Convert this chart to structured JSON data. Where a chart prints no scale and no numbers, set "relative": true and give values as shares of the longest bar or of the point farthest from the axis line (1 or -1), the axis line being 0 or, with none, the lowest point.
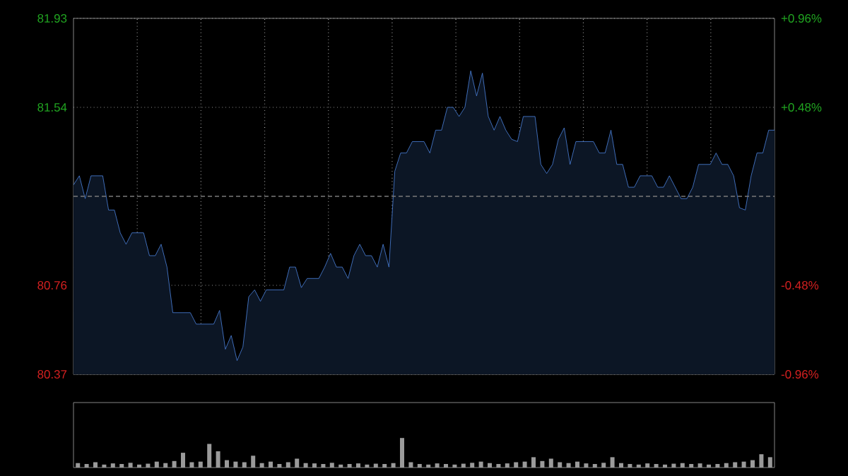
{
  "chart_data": [
    {
      "type": "area",
      "categories": [
        null,
        null,
        null,
        null,
        null,
        null,
        null,
        null,
        null,
        null,
        null,
        null,
        null,
        null,
        null,
        null,
        null,
        null,
        null,
        null,
        null,
        null,
        null,
        null,
        null,
        null,
        null,
        null,
        null,
        null,
        null,
        null,
        null,
        null,
        null,
        null,
        null,
        null,
        null,
        null,
        null,
        null,
        null,
        null,
        null,
        null,
        null,
        null,
        null,
        null,
        null,
        null,
        null,
        null,
        null,
        null,
        null,
        null,
        null,
        null,
        null,
        null,
        null,
        null,
        null,
        null,
        null,
        null,
        null,
        null,
        null,
        null,
        null,
        null,
        null,
        null,
        null,
        null,
        null,
        null,
        null,
        null,
        null,
        null,
        null,
        null,
        null,
        null,
        null,
        null,
        null,
        null,
        null,
        null,
        null,
        null,
        null,
        null,
        null,
        null,
        null,
        null,
        null,
        null,
        null,
        null,
        null,
        null,
        null,
        null,
        null,
        null,
        null,
        null,
        null,
        null,
        null,
        null,
        null,
        null,
        null
      ],
      "series": [
        {
          "color": "#4d84e0",
          "values": [
            81.2,
            81.24,
            81.14,
            81.24,
            81.24,
            81.24,
            81.09,
            81.09,
            80.99,
            80.94,
            80.99,
            80.99,
            80.99,
            80.89,
            80.89,
            80.94,
            80.84,
            80.64,
            80.64,
            80.64,
            80.64,
            80.59,
            80.59,
            80.59,
            80.59,
            80.65,
            80.48,
            80.54,
            80.43,
            80.49,
            80.71,
            80.74,
            80.69,
            80.74,
            80.74,
            80.74,
            80.74,
            80.84,
            80.84,
            80.75,
            80.79,
            80.79,
            80.79,
            80.84,
            80.9,
            80.84,
            80.84,
            80.79,
            80.89,
            80.94,
            80.89,
            80.89,
            80.84,
            80.94,
            80.84,
            81.26,
            81.34,
            81.34,
            81.39,
            81.39,
            81.39,
            81.34,
            81.44,
            81.44,
            81.54,
            81.54,
            81.5,
            81.54,
            81.7,
            81.59,
            81.69,
            81.5,
            81.44,
            81.5,
            81.44,
            81.4,
            81.39,
            81.5,
            81.5,
            81.5,
            81.29,
            81.25,
            81.29,
            81.4,
            81.45,
            81.29,
            81.39,
            81.39,
            81.39,
            81.39,
            81.34,
            81.34,
            81.44,
            81.29,
            81.29,
            81.19,
            81.19,
            81.24,
            81.24,
            81.24,
            81.19,
            81.19,
            81.24,
            81.19,
            81.14,
            81.14,
            81.19,
            81.29,
            81.29,
            81.29,
            81.34,
            81.29,
            81.29,
            81.24,
            81.1,
            81.09,
            81.24,
            81.34,
            81.34,
            81.44,
            81.44
          ]
        }
      ],
      "ylim": [
        80.37,
        81.93
      ],
      "yticks": [
        80.37,
        80.76,
        81.54,
        81.93
      ],
      "y2lim": [
        -0.96,
        0.96
      ],
      "y2ticks": [
        {
          "value": 0.96,
          "label": "+0.96%"
        },
        {
          "value": 0.48,
          "label": "+0.48%"
        },
        {
          "value": -0.48,
          "label": "-0.48%"
        },
        {
          "value": -0.96,
          "label": "-0.96%"
        }
      ],
      "ref_lines": [
        {
          "axis": "y",
          "value": 81.15,
          "color": "#7a7a7a",
          "line_style": "dashed"
        }
      ],
      "grid": true
    },
    {
      "type": "bar",
      "relative": true,
      "color": "#9a9a9a",
      "categories": [
        null,
        null,
        null,
        null,
        null,
        null,
        null,
        null,
        null,
        null,
        null,
        null,
        null,
        null,
        null,
        null,
        null,
        null,
        null,
        null,
        null,
        null,
        null,
        null,
        null,
        null,
        null,
        null,
        null,
        null,
        null,
        null,
        null,
        null,
        null,
        null,
        null,
        null,
        null,
        null,
        null,
        null,
        null,
        null,
        null,
        null,
        null,
        null,
        null,
        null,
        null,
        null,
        null,
        null,
        null,
        null,
        null,
        null,
        null,
        null,
        null,
        null,
        null,
        null,
        null,
        null,
        null,
        null,
        null,
        null,
        null,
        null,
        null,
        null,
        null,
        null,
        null,
        null,
        null,
        null
      ],
      "values": [
        0.15,
        0.12,
        0.18,
        0.1,
        0.14,
        0.12,
        0.16,
        0.1,
        0.13,
        0.2,
        0.15,
        0.22,
        0.5,
        0.18,
        0.2,
        0.8,
        0.55,
        0.25,
        0.2,
        0.18,
        0.4,
        0.15,
        0.2,
        0.12,
        0.18,
        0.3,
        0.15,
        0.14,
        0.12,
        0.16,
        0.1,
        0.12,
        0.14,
        0.1,
        0.13,
        0.12,
        0.15,
        1.0,
        0.18,
        0.12,
        0.1,
        0.14,
        0.12,
        0.1,
        0.13,
        0.16,
        0.2,
        0.15,
        0.12,
        0.14,
        0.18,
        0.2,
        0.35,
        0.22,
        0.3,
        0.18,
        0.15,
        0.2,
        0.14,
        0.12,
        0.16,
        0.35,
        0.15,
        0.12,
        0.1,
        0.14,
        0.12,
        0.1,
        0.13,
        0.15,
        0.12,
        0.14,
        0.1,
        0.12,
        0.15,
        0.18,
        0.2,
        0.25,
        0.45,
        0.35
      ]
    }
  ]
}
